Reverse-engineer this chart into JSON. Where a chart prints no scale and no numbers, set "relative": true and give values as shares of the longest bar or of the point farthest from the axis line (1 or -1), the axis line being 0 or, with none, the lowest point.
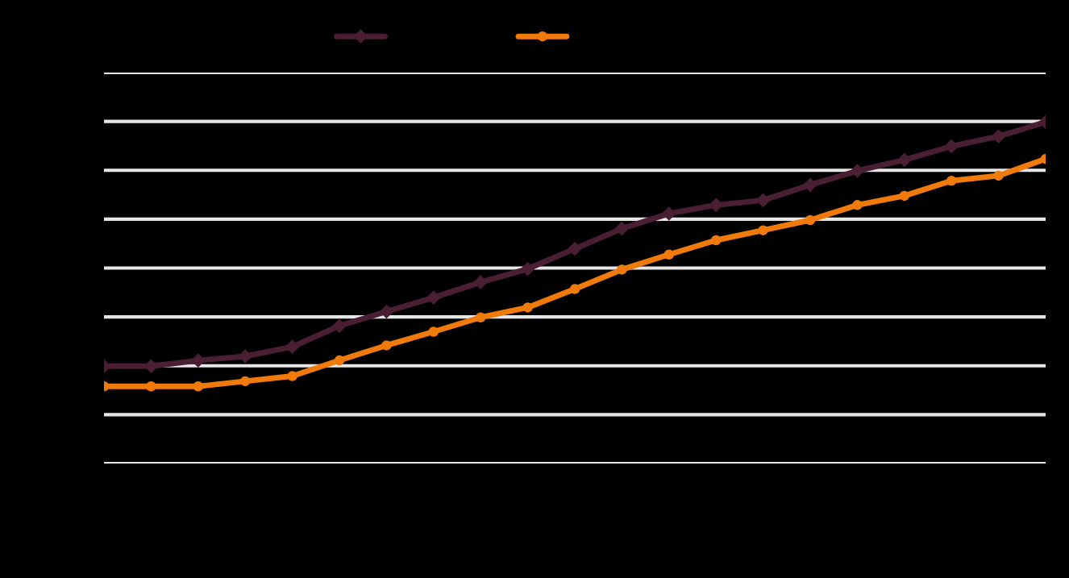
{
  "chart_data": {
    "type": "line",
    "relative": true,
    "grid": "y",
    "categories": [
      null,
      null,
      null,
      null,
      null,
      null,
      null,
      null,
      null,
      null,
      null,
      null,
      null,
      null,
      null,
      null,
      null,
      null,
      null,
      null,
      null
    ],
    "series": [
      {
        "color": "#4a1f33",
        "marker": "diamond",
        "values": [
          0.285,
          0.285,
          0.302,
          0.314,
          0.342,
          0.403,
          0.445,
          0.486,
          0.531,
          0.57,
          0.629,
          0.688,
          0.732,
          0.757,
          0.771,
          0.816,
          0.857,
          0.889,
          0.929,
          0.958,
          1
        ]
      },
      {
        "color": "#f07a0a",
        "marker": "circle",
        "values": [
          0.226,
          0.226,
          0.226,
          0.241,
          0.256,
          0.302,
          0.346,
          0.386,
          0.428,
          0.457,
          0.511,
          0.568,
          0.612,
          0.654,
          0.683,
          0.713,
          0.757,
          0.784,
          0.828,
          0.843,
          0.892
        ]
      }
    ]
  }
}
